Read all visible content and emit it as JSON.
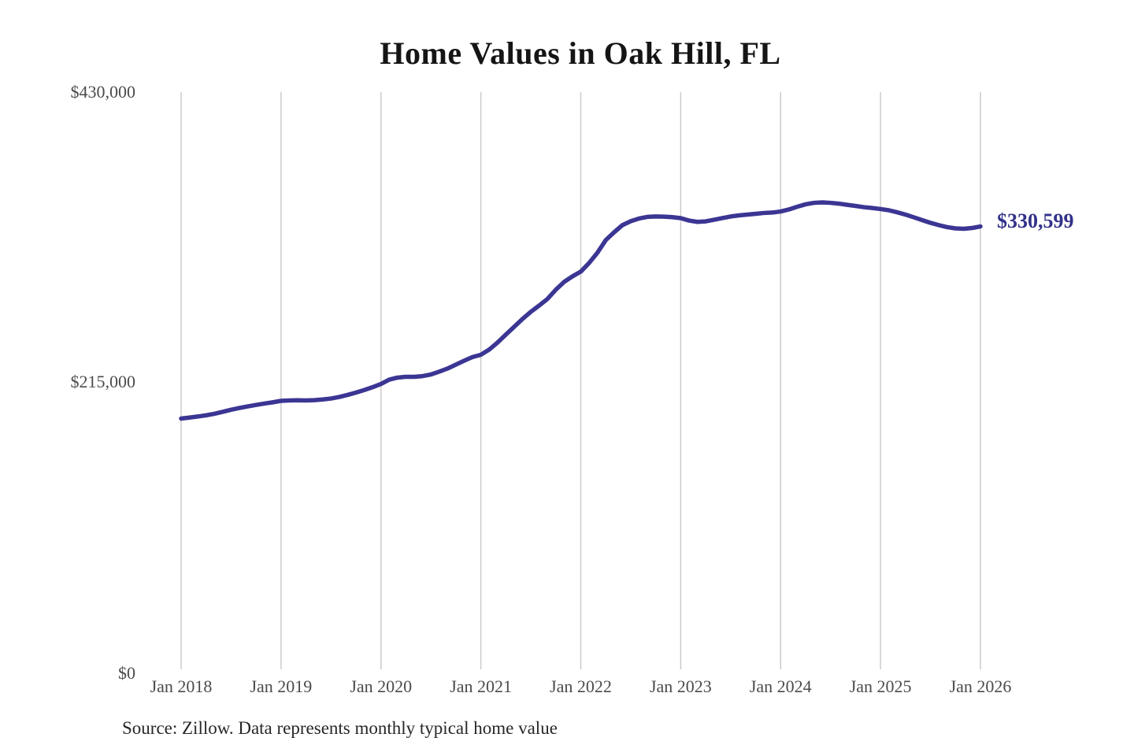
{
  "page": {
    "background": "#ffffff"
  },
  "chart": {
    "title": "Home Values in Oak Hill, FL",
    "end_label": "$330,599",
    "source_note": "Source: Zillow. Data represents monthly typical home value",
    "y_axis_labels": [
      "$430,000",
      "$215,000",
      "$0"
    ],
    "x_axis_labels": [
      "Jan 2018",
      "Jan 2019",
      "Jan 2020",
      "Jan 2021",
      "Jan 2022",
      "Jan 2023",
      "Jan 2024",
      "Jan 2025",
      "Jan 2026"
    ],
    "colors": {
      "line": "#3b3593",
      "end_label": "#32318a",
      "gridline": "#cbcbcb",
      "axis_text": "#4b4b4b",
      "title_text": "#151515",
      "source_text": "#272727",
      "background": "#ffffff"
    }
  },
  "chart_data": {
    "type": "line",
    "title": "Home Values in Oak Hill, FL",
    "unit": "USD",
    "x_start": "2018-01",
    "x_interval": "month",
    "x_tick_labels": [
      "Jan 2018",
      "Jan 2019",
      "Jan 2020",
      "Jan 2021",
      "Jan 2022",
      "Jan 2023",
      "Jan 2024",
      "Jan 2025",
      "Jan 2026"
    ],
    "ylim": [
      0,
      430000
    ],
    "y_tick_values": [
      0,
      215000,
      430000
    ],
    "y_tick_labels": [
      "$0",
      "$215,000",
      "$430,000"
    ],
    "grid": "vertical-only",
    "legend": "none",
    "last_value": 330599,
    "last_value_label": "$330,599",
    "source": "Source: Zillow. Data represents monthly typical home value",
    "series": [
      {
        "name": "Monthly typical home value",
        "values": [
          188500,
          189200,
          190000,
          190900,
          192000,
          193500,
          195000,
          196300,
          197500,
          198600,
          199600,
          200500,
          201600,
          201900,
          202000,
          201900,
          202100,
          202600,
          203300,
          204500,
          206000,
          207700,
          209600,
          211700,
          214100,
          217300,
          218800,
          219400,
          219400,
          219900,
          221100,
          223200,
          225500,
          228400,
          231300,
          234000,
          235700,
          239500,
          244700,
          250600,
          256400,
          262200,
          267500,
          272100,
          277000,
          283800,
          289600,
          293700,
          297200,
          303600,
          311200,
          320500,
          326300,
          331600,
          334500,
          336500,
          337700,
          338000,
          337900,
          337500,
          336800,
          335000,
          334000,
          334400,
          335600,
          336800,
          338000,
          338800,
          339400,
          340000,
          340600,
          340900,
          341700,
          343200,
          345200,
          347000,
          348100,
          348400,
          348100,
          347500,
          346600,
          345800,
          344900,
          344300,
          343500,
          342600,
          341100,
          339400,
          337400,
          335300,
          333300,
          331600,
          330100,
          329200,
          328900,
          329500,
          330599
        ]
      }
    ]
  }
}
